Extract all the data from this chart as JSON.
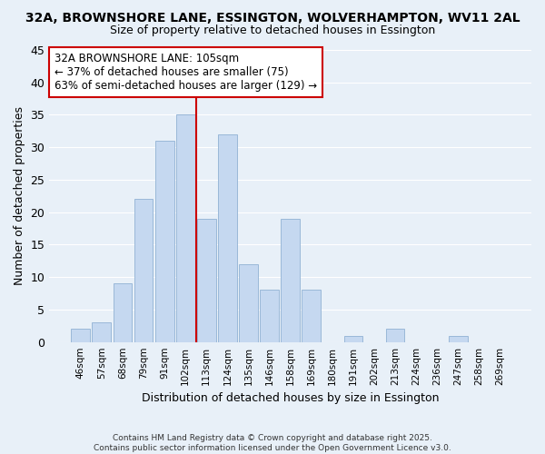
{
  "title": "32A, BROWNSHORE LANE, ESSINGTON, WOLVERHAMPTON, WV11 2AL",
  "subtitle": "Size of property relative to detached houses in Essington",
  "xlabel": "Distribution of detached houses by size in Essington",
  "ylabel": "Number of detached properties",
  "bin_labels": [
    "46sqm",
    "57sqm",
    "68sqm",
    "79sqm",
    "91sqm",
    "102sqm",
    "113sqm",
    "124sqm",
    "135sqm",
    "146sqm",
    "158sqm",
    "169sqm",
    "180sqm",
    "191sqm",
    "202sqm",
    "213sqm",
    "224sqm",
    "236sqm",
    "247sqm",
    "258sqm",
    "269sqm"
  ],
  "bar_heights": [
    2,
    3,
    9,
    22,
    31,
    35,
    19,
    32,
    12,
    8,
    19,
    8,
    0,
    1,
    0,
    2,
    0,
    0,
    1,
    0,
    0
  ],
  "bar_color": "#c5d8f0",
  "bar_edge_color": "#9ab8d8",
  "vline_color": "#cc0000",
  "vline_x_index": 5.5,
  "annotation_line1": "32A BROWNSHORE LANE: 105sqm",
  "annotation_line2": "← 37% of detached houses are smaller (75)",
  "annotation_line3": "63% of semi-detached houses are larger (129) →",
  "annotation_box_color": "#ffffff",
  "annotation_box_edge": "#cc0000",
  "ylim": [
    0,
    45
  ],
  "yticks": [
    0,
    5,
    10,
    15,
    20,
    25,
    30,
    35,
    40,
    45
  ],
  "background_color": "#e8f0f8",
  "grid_color": "#ffffff",
  "footer_line1": "Contains HM Land Registry data © Crown copyright and database right 2025.",
  "footer_line2": "Contains public sector information licensed under the Open Government Licence v3.0."
}
